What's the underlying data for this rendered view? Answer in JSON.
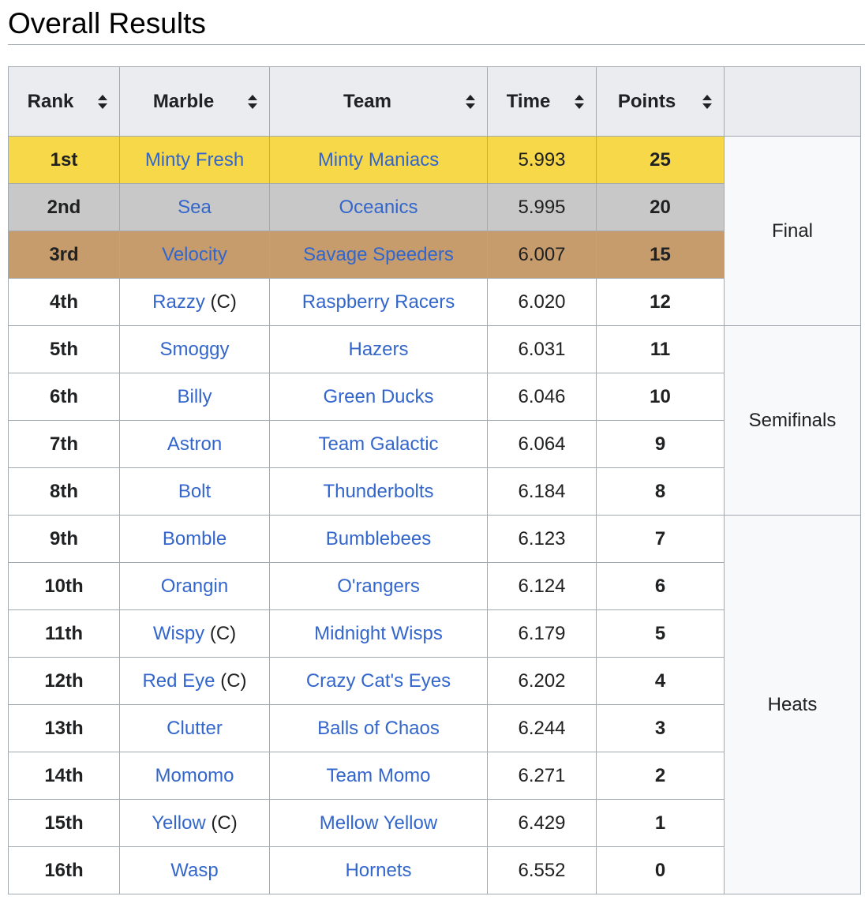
{
  "page": {
    "title": "Overall Results"
  },
  "table": {
    "headers": {
      "rank": "Rank",
      "marble": "Marble",
      "team": "Team",
      "time": "Time",
      "points": "Points",
      "stage": ""
    },
    "sort_icon": "sort-both-icon",
    "medal_colors": {
      "gold": "#f7d848",
      "silver": "#c8c8c8",
      "bronze": "#c69c6d"
    },
    "link_color": "#3366cc",
    "rows": [
      {
        "rank": "1st",
        "marble": "Minty Fresh",
        "captain": "",
        "team": "Minty Maniacs",
        "time": "5.993",
        "points": "25",
        "medal": "gold"
      },
      {
        "rank": "2nd",
        "marble": "Sea",
        "captain": "",
        "team": "Oceanics",
        "time": "5.995",
        "points": "20",
        "medal": "silver"
      },
      {
        "rank": "3rd",
        "marble": "Velocity",
        "captain": "",
        "team": "Savage Speeders",
        "time": "6.007",
        "points": "15",
        "medal": "bronze"
      },
      {
        "rank": "4th",
        "marble": "Razzy",
        "captain": "(C)",
        "team": "Raspberry Racers",
        "time": "6.020",
        "points": "12",
        "medal": ""
      },
      {
        "rank": "5th",
        "marble": "Smoggy",
        "captain": "",
        "team": "Hazers",
        "time": "6.031",
        "points": "11",
        "medal": ""
      },
      {
        "rank": "6th",
        "marble": "Billy",
        "captain": "",
        "team": "Green Ducks",
        "time": "6.046",
        "points": "10",
        "medal": ""
      },
      {
        "rank": "7th",
        "marble": "Astron",
        "captain": "",
        "team": "Team Galactic",
        "time": "6.064",
        "points": "9",
        "medal": ""
      },
      {
        "rank": "8th",
        "marble": "Bolt",
        "captain": "",
        "team": "Thunderbolts",
        "time": "6.184",
        "points": "8",
        "medal": ""
      },
      {
        "rank": "9th",
        "marble": "Bomble",
        "captain": "",
        "team": "Bumblebees",
        "time": "6.123",
        "points": "7",
        "medal": ""
      },
      {
        "rank": "10th",
        "marble": "Orangin",
        "captain": "",
        "team": "O'rangers",
        "time": "6.124",
        "points": "6",
        "medal": ""
      },
      {
        "rank": "11th",
        "marble": "Wispy",
        "captain": "(C)",
        "team": "Midnight Wisps",
        "time": "6.179",
        "points": "5",
        "medal": ""
      },
      {
        "rank": "12th",
        "marble": "Red Eye",
        "captain": "(C)",
        "team": "Crazy Cat's Eyes",
        "time": "6.202",
        "points": "4",
        "medal": ""
      },
      {
        "rank": "13th",
        "marble": "Clutter",
        "captain": "",
        "team": "Balls of Chaos",
        "time": "6.244",
        "points": "3",
        "medal": ""
      },
      {
        "rank": "14th",
        "marble": "Momomo",
        "captain": "",
        "team": "Team Momo",
        "time": "6.271",
        "points": "2",
        "medal": ""
      },
      {
        "rank": "15th",
        "marble": "Yellow",
        "captain": "(C)",
        "team": "Mellow Yellow",
        "time": "6.429",
        "points": "1",
        "medal": ""
      },
      {
        "rank": "16th",
        "marble": "Wasp",
        "captain": "",
        "team": "Hornets",
        "time": "6.552",
        "points": "0",
        "medal": ""
      }
    ],
    "stages": [
      {
        "label": "Final",
        "rows": 4
      },
      {
        "label": "Semifinals",
        "rows": 4
      },
      {
        "label": "Heats",
        "rows": 8
      }
    ]
  }
}
